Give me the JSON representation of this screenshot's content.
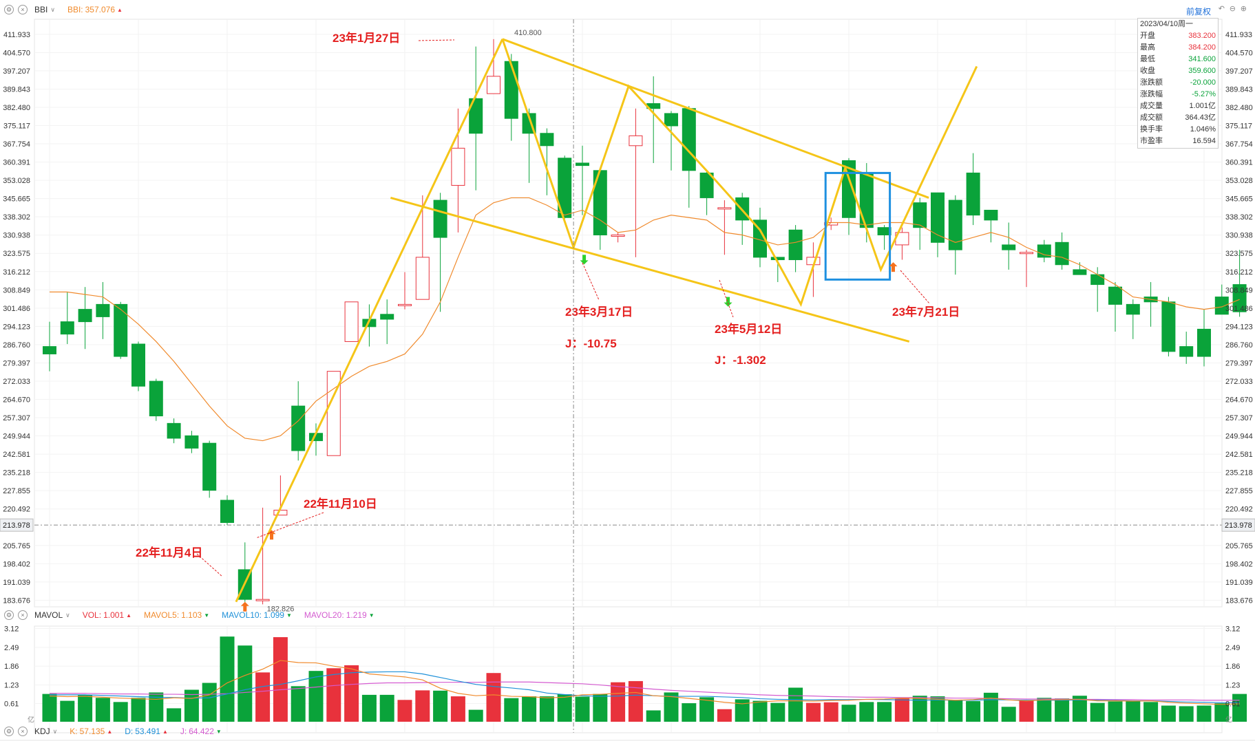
{
  "main_header": {
    "indicator": "BBI",
    "bbi_label": "BBI:",
    "bbi_value": "357.076"
  },
  "restore_button": "前复权",
  "ohlc_panel": {
    "date": "2023/04/10周一",
    "rows": [
      {
        "label": "开盘",
        "value": "383.200",
        "color": "#e8323c"
      },
      {
        "label": "最高",
        "value": "384.200",
        "color": "#e8323c"
      },
      {
        "label": "最低",
        "value": "341.600",
        "color": "#0aa33a"
      },
      {
        "label": "收盘",
        "value": "359.600",
        "color": "#0aa33a"
      },
      {
        "label": "涨跌额",
        "value": "-20.000",
        "color": "#0aa33a"
      },
      {
        "label": "涨跌幅",
        "value": "-5.27%",
        "color": "#0aa33a"
      },
      {
        "label": "成交量",
        "value": "1.001亿",
        "color": "#333333"
      },
      {
        "label": "成交额",
        "value": "364.43亿",
        "color": "#333333"
      },
      {
        "label": "换手率",
        "value": "1.046%",
        "color": "#333333"
      },
      {
        "label": "市盈率",
        "value": "16.594",
        "color": "#333333"
      }
    ]
  },
  "vol_header": {
    "indicator": "MAVOL",
    "vol": "VOL:",
    "vol_v": "1.001",
    "ma5": "MAVOL5:",
    "ma5_v": "1.103",
    "ma10": "MAVOL10:",
    "ma10_v": "1.099",
    "ma20": "MAVOL20:",
    "ma20_v": "1.219"
  },
  "kdj_header": {
    "indicator": "KDJ",
    "k": "K:",
    "k_v": "57.135",
    "d": "D:",
    "d_v": "53.491",
    "j": "J:",
    "j_v": "64.422"
  },
  "colors": {
    "up": "#e8323c",
    "down": "#0aa33a",
    "ma": "#f08a2c",
    "trend": "#f5c518",
    "box": "#1e90e0",
    "annot": "#e41e1e"
  },
  "chart_data": [
    {
      "type": "candlestick",
      "price_ticks": [
        "411.933",
        "404.570",
        "397.207",
        "389.843",
        "382.480",
        "375.117",
        "367.754",
        "360.391",
        "353.028",
        "345.665",
        "338.302",
        "330.938",
        "323.575",
        "316.212",
        "308.849",
        "301.486",
        "294.123",
        "286.760",
        "279.397",
        "272.033",
        "264.670",
        "257.307",
        "249.944",
        "242.581",
        "235.218",
        "227.855",
        "220.492",
        "213.978",
        "205.765",
        "198.402",
        "191.039",
        "183.676"
      ],
      "ylim": [
        181,
        418
      ],
      "crosshair_price": "213.978",
      "high_label": "410.800",
      "low_label": "182.826",
      "ohlc": [
        [
          286,
          296,
          283,
          276
        ],
        [
          296,
          308,
          291,
          287
        ],
        [
          301,
          310,
          296,
          285
        ],
        [
          303,
          312,
          298,
          289
        ],
        [
          303,
          304,
          282,
          281
        ],
        [
          287,
          288,
          270,
          268
        ],
        [
          272,
          273,
          258,
          256
        ],
        [
          255,
          257,
          249,
          247
        ],
        [
          250,
          252,
          245,
          243
        ],
        [
          247,
          248,
          228,
          225
        ],
        [
          224,
          226,
          215,
          214
        ],
        [
          196,
          207,
          184,
          183
        ],
        [
          184,
          221,
          184,
          182
        ],
        [
          218,
          234,
          220,
          218
        ],
        [
          262,
          272,
          244,
          240
        ],
        [
          251,
          255,
          248,
          242
        ],
        [
          242,
          276,
          276,
          242
        ],
        [
          288,
          304,
          304,
          288
        ],
        [
          297,
          303,
          294,
          286
        ],
        [
          299,
          305,
          297,
          287
        ],
        [
          303,
          316,
          303,
          301
        ],
        [
          305,
          347,
          322,
          305
        ],
        [
          345,
          348,
          330,
          300
        ],
        [
          351,
          382,
          366,
          332
        ],
        [
          386,
          407,
          372,
          349
        ],
        [
          388,
          410,
          395,
          390
        ],
        [
          401,
          404,
          378,
          369
        ],
        [
          380,
          382,
          372,
          352
        ],
        [
          372,
          374,
          367,
          347
        ],
        [
          362,
          363,
          338,
          336
        ],
        [
          360,
          367,
          359,
          339
        ],
        [
          357,
          356,
          331,
          325
        ],
        [
          331,
          332,
          331,
          328
        ],
        [
          367,
          382,
          371,
          322
        ],
        [
          384,
          395,
          382,
          360
        ],
        [
          380,
          381,
          375,
          357
        ],
        [
          382,
          383,
          357,
          342
        ],
        [
          356,
          357,
          346,
          339
        ],
        [
          342,
          345,
          342,
          323
        ],
        [
          346,
          348,
          337,
          327
        ],
        [
          337,
          342,
          322,
          318
        ],
        [
          322,
          322,
          321,
          312
        ],
        [
          333,
          335,
          321,
          316
        ],
        [
          319,
          328,
          322,
          306
        ],
        [
          335,
          338,
          336,
          333
        ],
        [
          361,
          362,
          338,
          331
        ],
        [
          356,
          360,
          334,
          328
        ],
        [
          334,
          335,
          331,
          325
        ],
        [
          327,
          334,
          332,
          321
        ],
        [
          344,
          346,
          334,
          325
        ],
        [
          348,
          348,
          328,
          322
        ],
        [
          345,
          347,
          325,
          315
        ],
        [
          356,
          364,
          339,
          335
        ],
        [
          341,
          341,
          337,
          328
        ],
        [
          327,
          336,
          325,
          317
        ],
        [
          324,
          325,
          324,
          310
        ],
        [
          327,
          329,
          322,
          320
        ],
        [
          328,
          332,
          319,
          317
        ],
        [
          317,
          320,
          315,
          316
        ],
        [
          315,
          318,
          311,
          300
        ],
        [
          310,
          312,
          303,
          292
        ],
        [
          303,
          305,
          299,
          289
        ],
        [
          306,
          312,
          304,
          294
        ],
        [
          304,
          306,
          284,
          282
        ],
        [
          286,
          292,
          282,
          279
        ],
        [
          293,
          301,
          282,
          278
        ],
        [
          306,
          311,
          299,
          299
        ],
        [
          311,
          325,
          300,
          298
        ]
      ],
      "bbi": [
        308,
        308,
        307,
        306,
        301,
        295,
        288,
        280,
        271,
        262,
        254,
        249,
        248,
        250,
        256,
        264,
        269,
        274,
        278,
        280,
        283,
        291,
        304,
        322,
        339,
        344,
        346,
        346,
        343,
        339,
        341,
        337,
        332,
        333,
        337,
        339,
        338,
        337,
        332,
        331,
        329,
        327,
        328,
        330,
        336,
        336,
        335,
        336,
        336,
        335,
        331,
        328,
        330,
        332,
        330,
        326,
        323,
        322,
        319,
        315,
        311,
        306,
        305,
        304,
        302,
        301,
        302,
        305
      ],
      "annotations": [
        "22年11月4日",
        "22年11月10日",
        "23年1月27日",
        "23年3月17日",
        "J：-10.75",
        "23年5月12日",
        "J：-1.302",
        "23年7月21日"
      ]
    },
    {
      "type": "bar",
      "name": "volume",
      "ticks": [
        "3.12",
        "2.49",
        "1.86",
        "1.23",
        "0.61"
      ],
      "unit_label": "亿",
      "ylim": [
        0,
        3.2
      ],
      "values": [
        0.93,
        0.7,
        0.9,
        0.8,
        0.66,
        0.8,
        0.98,
        0.45,
        1.07,
        1.3,
        2.85,
        2.55,
        1.65,
        2.83,
        1.19,
        1.7,
        1.79,
        1.89,
        0.9,
        0.9,
        0.73,
        1.05,
        1.04,
        0.85,
        0.4,
        1.63,
        0.79,
        0.85,
        0.85,
        0.92,
        0.84,
        0.93,
        1.32,
        1.36,
        0.38,
        0.98,
        0.62,
        0.82,
        0.42,
        0.75,
        0.7,
        0.63,
        1.14,
        0.63,
        0.65,
        0.57,
        0.66,
        0.66,
        0.78,
        0.87,
        0.85,
        0.72,
        0.69,
        0.97,
        0.5,
        0.72,
        0.8,
        0.78,
        0.87,
        0.63,
        0.68,
        0.71,
        0.66,
        0.54,
        0.52,
        0.54,
        0.62,
        0.93
      ],
      "ma5": [
        0.86,
        0.84,
        0.85,
        0.82,
        0.79,
        0.77,
        0.75,
        0.8,
        0.78,
        0.9,
        1.3,
        1.55,
        1.76,
        2.05,
        1.98,
        1.97,
        1.86,
        1.77,
        1.6,
        1.55,
        1.5,
        1.4,
        1.12,
        0.95,
        0.87,
        0.9,
        0.85,
        0.84,
        0.8,
        0.82,
        0.9,
        0.92,
        0.95,
        0.98,
        0.87,
        0.84,
        0.78,
        0.72,
        0.65,
        0.6,
        0.66,
        0.7,
        0.7,
        0.69,
        0.71,
        0.72,
        0.75,
        0.76,
        0.79,
        0.78,
        0.75,
        0.72,
        0.74,
        0.79,
        0.73,
        0.7,
        0.73,
        0.74,
        0.75,
        0.7,
        0.7,
        0.69,
        0.7,
        0.65,
        0.62,
        0.6,
        0.58,
        0.6
      ],
      "ma10": [
        0.9,
        0.9,
        0.9,
        0.88,
        0.86,
        0.84,
        0.82,
        0.81,
        0.79,
        0.8,
        0.93,
        1.07,
        1.18,
        1.25,
        1.37,
        1.5,
        1.58,
        1.64,
        1.66,
        1.67,
        1.67,
        1.6,
        1.48,
        1.36,
        1.25,
        1.18,
        1.13,
        1.07,
        0.96,
        0.91,
        0.87,
        0.85,
        0.86,
        0.89,
        0.87,
        0.85,
        0.85,
        0.85,
        0.83,
        0.81,
        0.77,
        0.75,
        0.74,
        0.73,
        0.74,
        0.74,
        0.75,
        0.74,
        0.73,
        0.72,
        0.73,
        0.72,
        0.72,
        0.74,
        0.73,
        0.72,
        0.72,
        0.72,
        0.73,
        0.72,
        0.71,
        0.7,
        0.7,
        0.68,
        0.66,
        0.65,
        0.64,
        0.64
      ],
      "ma20": [
        0.95,
        0.95,
        0.95,
        0.94,
        0.93,
        0.93,
        0.92,
        0.92,
        0.91,
        0.92,
        0.94,
        0.98,
        1.02,
        1.07,
        1.11,
        1.16,
        1.21,
        1.25,
        1.28,
        1.3,
        1.3,
        1.31,
        1.32,
        1.32,
        1.32,
        1.33,
        1.33,
        1.33,
        1.31,
        1.29,
        1.27,
        1.23,
        1.18,
        1.14,
        1.09,
        1.05,
        1.02,
        0.99,
        0.96,
        0.93,
        0.9,
        0.88,
        0.87,
        0.86,
        0.84,
        0.83,
        0.82,
        0.82,
        0.81,
        0.81,
        0.8,
        0.79,
        0.79,
        0.78,
        0.77,
        0.76,
        0.76,
        0.76,
        0.75,
        0.75,
        0.74,
        0.74,
        0.73,
        0.73,
        0.73,
        0.72,
        0.72,
        0.72
      ]
    }
  ]
}
